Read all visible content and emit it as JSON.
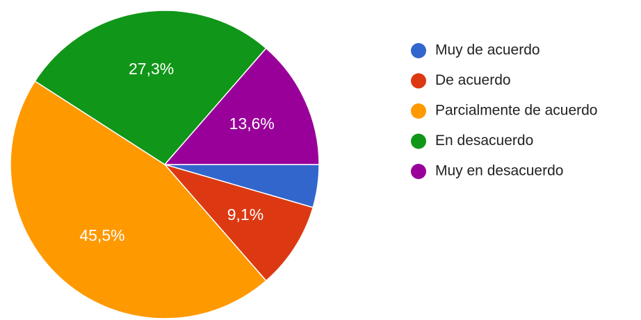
{
  "chart_data": {
    "type": "pie",
    "categories": [
      "Muy de acuerdo",
      "De acuerdo",
      "Parcialmente de acuerdo",
      "En desacuerdo",
      "Muy en desacuerdo"
    ],
    "values": [
      4.5,
      9.1,
      45.5,
      27.3,
      13.6
    ],
    "value_labels": [
      null,
      "9,1%",
      "45,5%",
      "27,3%",
      "13,6%"
    ],
    "colors": [
      "#3366cc",
      "#dc3912",
      "#ff9900",
      "#109618",
      "#990099"
    ],
    "legend": "right"
  }
}
